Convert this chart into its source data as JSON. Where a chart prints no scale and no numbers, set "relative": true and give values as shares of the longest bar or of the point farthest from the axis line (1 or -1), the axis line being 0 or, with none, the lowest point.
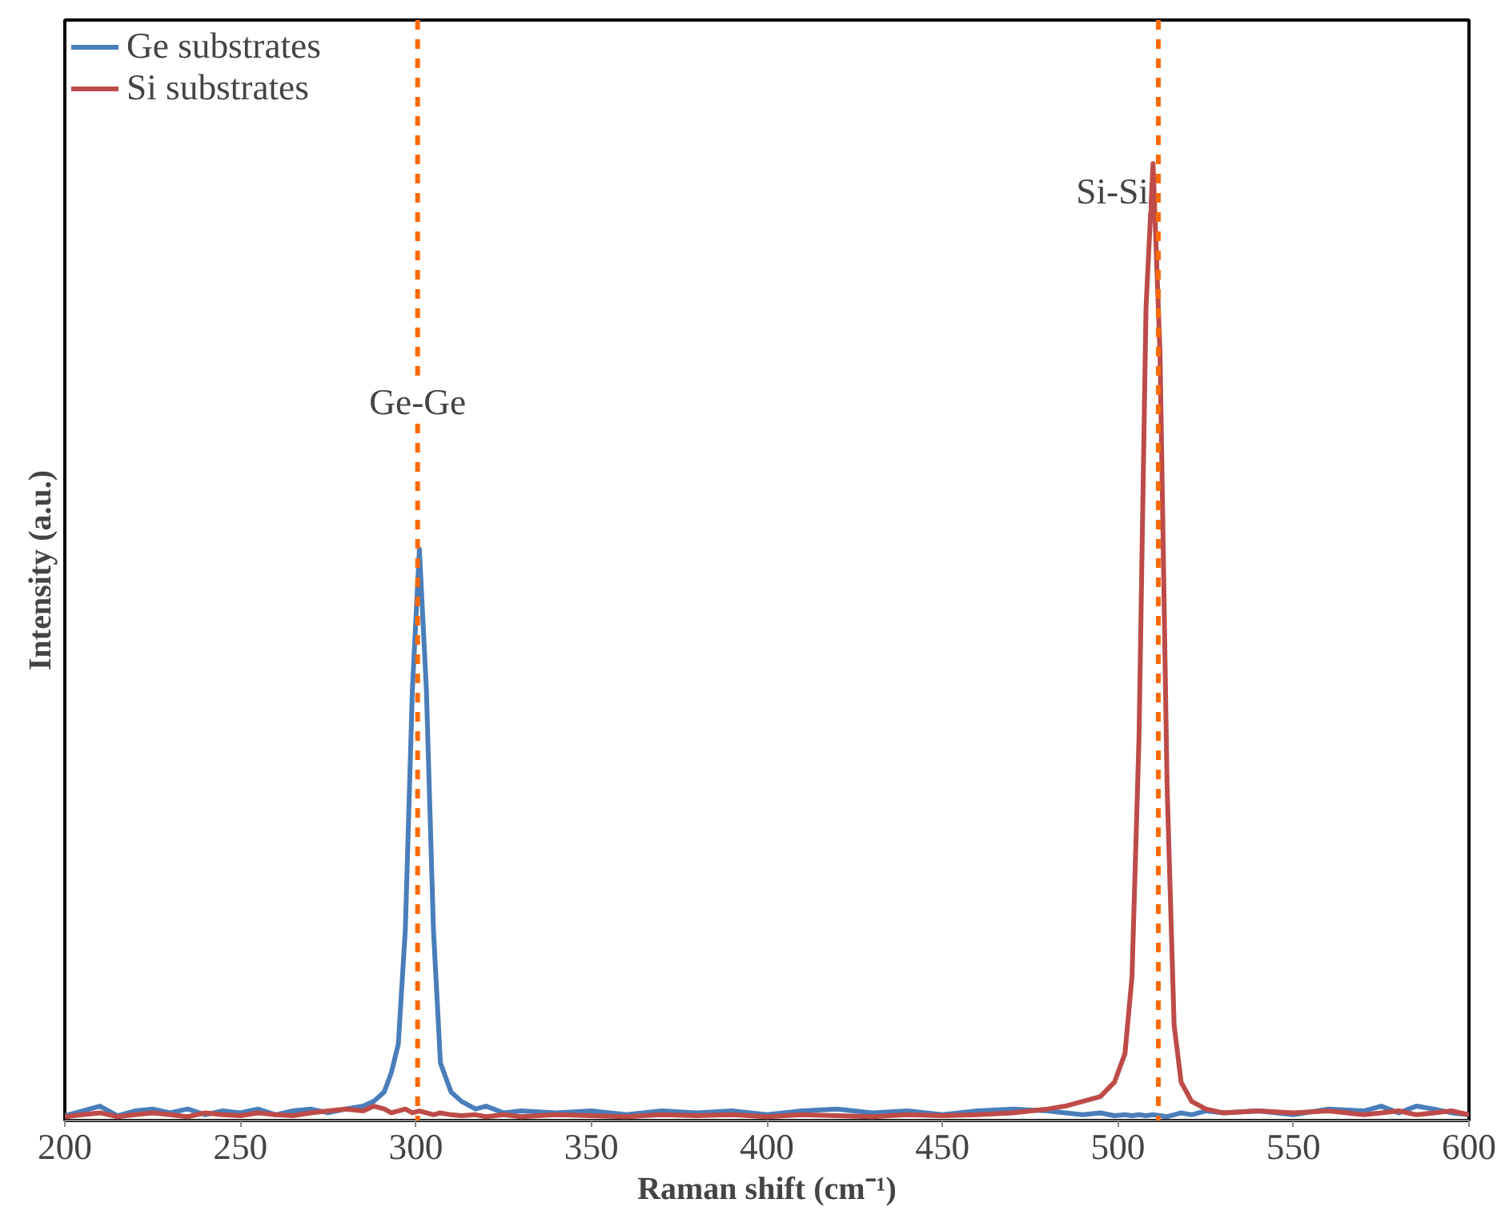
{
  "chart_data": {
    "type": "line",
    "relative": true,
    "xlabel": "Raman shift (cm⁻¹)",
    "ylabel": "Intensity (a.u.)",
    "xlim": [
      200,
      600
    ],
    "xticks": [
      200,
      250,
      300,
      350,
      400,
      450,
      500,
      550,
      600
    ],
    "legend": "top left",
    "grid": false,
    "line_style": "solid",
    "ref_lines": [
      {
        "axis": "x",
        "value": 300.5,
        "color": "#ff6a00",
        "line_style": "dashed"
      },
      {
        "axis": "x",
        "value": 511.5,
        "color": "#ff6a00",
        "line_style": "dashed"
      }
    ],
    "annotations": [
      {
        "text": "Ge-Ge",
        "x": 300.5,
        "y": 0.73
      },
      {
        "text": "Si-Si",
        "x": 511.5,
        "y": 0.95
      }
    ],
    "x": [
      200,
      205,
      210,
      215,
      220,
      225,
      230,
      235,
      240,
      245,
      250,
      255,
      260,
      265,
      270,
      275,
      280,
      285,
      288,
      291,
      293,
      295,
      297,
      299,
      301,
      303,
      305,
      307,
      310,
      313,
      317,
      320,
      325,
      330,
      340,
      350,
      360,
      370,
      380,
      390,
      400,
      410,
      420,
      430,
      440,
      450,
      460,
      470,
      480,
      485,
      490,
      495,
      499,
      502,
      504,
      506,
      508,
      510,
      512,
      514,
      516,
      518,
      521,
      525,
      530,
      540,
      550,
      560,
      570,
      575,
      580,
      585,
      590,
      595,
      600
    ],
    "series": [
      {
        "name": "Ge substrates",
        "color": "#4a7ebb",
        "values": [
          0.005,
          0.01,
          0.015,
          0.005,
          0.01,
          0.012,
          0.008,
          0.012,
          0.006,
          0.01,
          0.008,
          0.012,
          0.006,
          0.01,
          0.012,
          0.008,
          0.012,
          0.015,
          0.02,
          0.03,
          0.05,
          0.08,
          0.2,
          0.45,
          0.597,
          0.45,
          0.2,
          0.06,
          0.03,
          0.02,
          0.012,
          0.015,
          0.008,
          0.01,
          0.008,
          0.01,
          0.006,
          0.01,
          0.008,
          0.01,
          0.006,
          0.01,
          0.012,
          0.008,
          0.01,
          0.006,
          0.01,
          0.012,
          0.01,
          0.008,
          0.006,
          0.008,
          0.005,
          0.006,
          0.005,
          0.006,
          0.005,
          0.006,
          0.005,
          0.004,
          0.006,
          0.008,
          0.006,
          0.01,
          0.008,
          0.01,
          0.006,
          0.012,
          0.01,
          0.015,
          0.008,
          0.015,
          0.012,
          0.008,
          0.006
        ]
      },
      {
        "name": "Si substrates",
        "color": "#be4b48",
        "values": [
          0.004,
          0.006,
          0.008,
          0.004,
          0.006,
          0.008,
          0.006,
          0.004,
          0.008,
          0.006,
          0.005,
          0.008,
          0.006,
          0.005,
          0.008,
          0.01,
          0.012,
          0.01,
          0.015,
          0.012,
          0.008,
          0.01,
          0.012,
          0.008,
          0.01,
          0.008,
          0.006,
          0.008,
          0.006,
          0.005,
          0.006,
          0.004,
          0.006,
          0.004,
          0.006,
          0.005,
          0.004,
          0.006,
          0.005,
          0.006,
          0.004,
          0.006,
          0.005,
          0.004,
          0.006,
          0.005,
          0.006,
          0.008,
          0.012,
          0.015,
          0.02,
          0.025,
          0.04,
          0.07,
          0.15,
          0.4,
          0.85,
          1.0,
          0.8,
          0.35,
          0.1,
          0.04,
          0.02,
          0.012,
          0.008,
          0.01,
          0.008,
          0.01,
          0.006,
          0.008,
          0.01,
          0.006,
          0.008,
          0.01,
          0.006
        ]
      }
    ]
  }
}
